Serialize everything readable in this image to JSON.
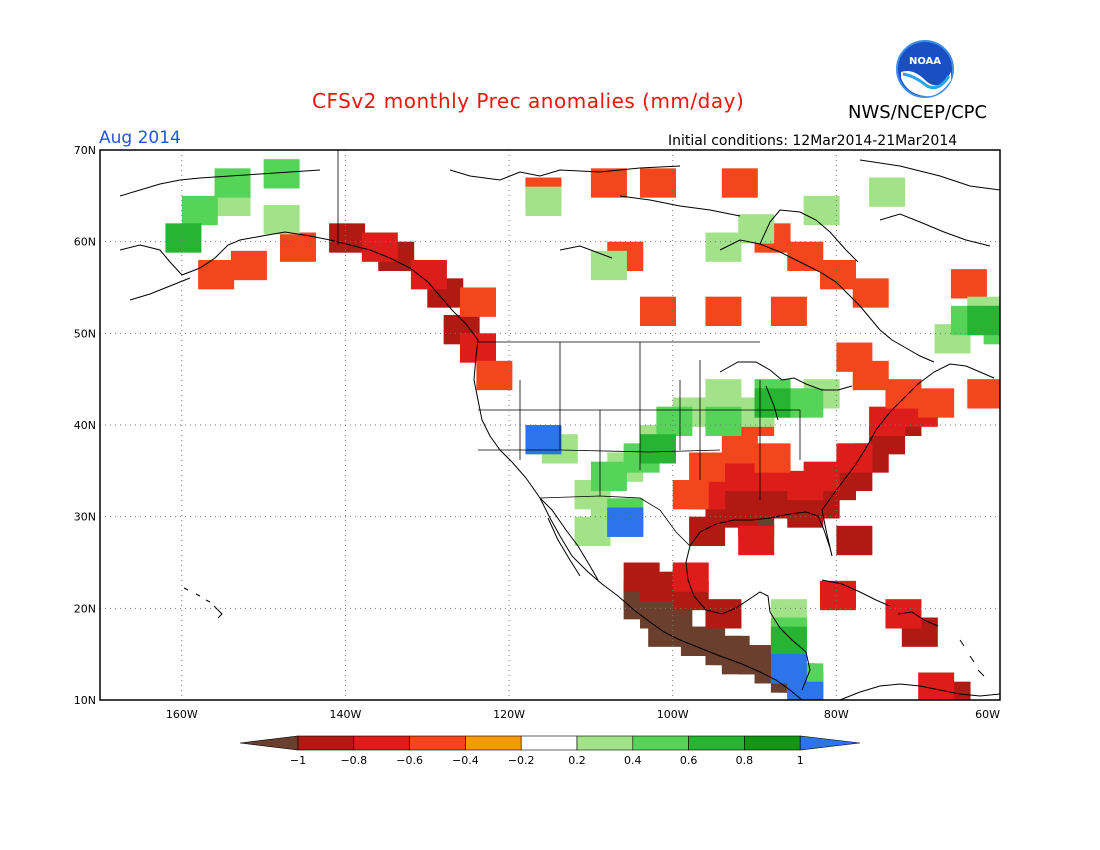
{
  "header": {
    "title": "CFSv2 monthly Prec anomalies (mm/day)",
    "agency": "NWS/NCEP/CPC",
    "valid_month": "Aug 2014",
    "initial_conditions": "Initial conditions: 12Mar2014-21Mar2014",
    "logo_text": "NOAA"
  },
  "map": {
    "lon_range": [
      -170,
      -60
    ],
    "lat_range": [
      10,
      70
    ],
    "lon_ticks": [
      {
        "value": -160,
        "label": "160W"
      },
      {
        "value": -140,
        "label": "140W"
      },
      {
        "value": -120,
        "label": "120W"
      },
      {
        "value": -100,
        "label": "100W"
      },
      {
        "value": -80,
        "label": "80W"
      },
      {
        "value": -60,
        "label": "60W"
      }
    ],
    "lat_ticks": [
      {
        "value": 10,
        "label": "10N"
      },
      {
        "value": 20,
        "label": "20N"
      },
      {
        "value": 30,
        "label": "30N"
      },
      {
        "value": 40,
        "label": "40N"
      },
      {
        "value": 50,
        "label": "50N"
      },
      {
        "value": 60,
        "label": "60N"
      },
      {
        "value": 70,
        "label": "70N"
      }
    ],
    "grid": "dotted",
    "anomaly_regions": [
      {
        "level": "-1",
        "cells": [
          [
            -106,
            22
          ],
          [
            -104,
            20
          ],
          [
            -102,
            19
          ],
          [
            -98,
            17
          ],
          [
            -96,
            16
          ],
          [
            -94,
            15
          ],
          [
            -90,
            14
          ],
          [
            -88,
            13
          ],
          [
            -86,
            12
          ],
          [
            -92,
            30
          ],
          [
            -106,
            21
          ],
          [
            -103,
            18
          ],
          [
            -99,
            17
          ],
          [
            -95,
            16
          ],
          [
            -92,
            15
          ],
          [
            -89,
            14
          ],
          [
            -87,
            13
          ]
        ]
      },
      {
        "level": "-0.8",
        "cells": [
          [
            -96,
            32
          ],
          [
            -94,
            31
          ],
          [
            -92,
            33
          ],
          [
            -90,
            32
          ],
          [
            -88,
            33
          ],
          [
            -86,
            31
          ],
          [
            -84,
            32
          ],
          [
            -82,
            34
          ],
          [
            -80,
            35
          ],
          [
            -78,
            37
          ],
          [
            -76,
            39
          ],
          [
            -74,
            41
          ],
          [
            -142,
            61
          ],
          [
            -136,
            59
          ],
          [
            -130,
            55
          ],
          [
            -128,
            51
          ],
          [
            -106,
            24
          ],
          [
            -100,
            22
          ],
          [
            -96,
            20
          ],
          [
            -80,
            28
          ],
          [
            -72,
            18
          ],
          [
            -68,
            11
          ],
          [
            -96,
            34
          ],
          [
            -98,
            29
          ],
          [
            -104,
            23
          ]
        ]
      },
      {
        "level": "-0.6",
        "cells": [
          [
            -98,
            33
          ],
          [
            -94,
            35
          ],
          [
            -90,
            35
          ],
          [
            -86,
            34
          ],
          [
            -84,
            35
          ],
          [
            -80,
            37
          ],
          [
            -76,
            41
          ],
          [
            -72,
            42
          ],
          [
            -92,
            28
          ],
          [
            -100,
            24
          ],
          [
            -138,
            60
          ],
          [
            -132,
            57
          ],
          [
            -126,
            49
          ],
          [
            -82,
            22
          ],
          [
            -74,
            20
          ],
          [
            -70,
            12
          ]
        ]
      },
      {
        "level": "-0.4",
        "cells": [
          [
            -100,
            33
          ],
          [
            -98,
            36
          ],
          [
            -94,
            38
          ],
          [
            -90,
            37
          ],
          [
            -80,
            48
          ],
          [
            -78,
            46
          ],
          [
            -74,
            44
          ],
          [
            -70,
            43
          ],
          [
            -64,
            44
          ],
          [
            -118,
            66
          ],
          [
            -110,
            67
          ],
          [
            -104,
            67
          ],
          [
            -94,
            67
          ],
          [
            -90,
            61
          ],
          [
            -86,
            59
          ],
          [
            -78,
            55
          ],
          [
            -66,
            56
          ],
          [
            -108,
            59
          ],
          [
            -104,
            53
          ],
          [
            -96,
            53
          ],
          [
            -88,
            53
          ],
          [
            -82,
            57
          ],
          [
            -124,
            46
          ],
          [
            -126,
            54
          ],
          [
            -148,
            60
          ],
          [
            -154,
            58
          ],
          [
            -158,
            57
          ],
          [
            -92,
            41
          ]
        ]
      },
      {
        "level": "0.4",
        "cells": [
          [
            -112,
            33
          ],
          [
            -110,
            31
          ],
          [
            -108,
            36
          ],
          [
            -104,
            39
          ],
          [
            -100,
            42
          ],
          [
            -96,
            44
          ],
          [
            -92,
            42
          ],
          [
            -88,
            43
          ],
          [
            -84,
            44
          ],
          [
            -116,
            38
          ],
          [
            -112,
            29
          ],
          [
            -156,
            65
          ],
          [
            -150,
            63
          ],
          [
            -118,
            65
          ],
          [
            -92,
            62
          ],
          [
            -110,
            58
          ],
          [
            -96,
            60
          ],
          [
            -84,
            64
          ],
          [
            -76,
            66
          ],
          [
            -64,
            53
          ],
          [
            -68,
            50
          ],
          [
            -88,
            20
          ]
        ]
      },
      {
        "level": "0.6",
        "cells": [
          [
            -110,
            35
          ],
          [
            -106,
            37
          ],
          [
            -102,
            41
          ],
          [
            -96,
            41
          ],
          [
            -90,
            44
          ],
          [
            -86,
            43
          ],
          [
            -108,
            31
          ],
          [
            -160,
            64
          ],
          [
            -156,
            67
          ],
          [
            -150,
            68
          ],
          [
            -62,
            51
          ],
          [
            -66,
            52
          ],
          [
            -88,
            18
          ],
          [
            -86,
            13
          ]
        ]
      },
      {
        "level": "0.8",
        "cells": [
          [
            -108,
            30
          ],
          [
            -104,
            38
          ],
          [
            -90,
            43
          ],
          [
            -162,
            61
          ],
          [
            -64,
            52
          ],
          [
            -88,
            17
          ]
        ]
      },
      {
        "level": "1",
        "cells": [
          [
            -118,
            39
          ],
          [
            -108,
            30
          ],
          [
            -88,
            14
          ],
          [
            -86,
            11
          ]
        ]
      }
    ]
  },
  "colorbar": {
    "levels": [
      {
        "label": "-1",
        "color": "#6b3f2e"
      },
      {
        "label": "-0.8",
        "color": "#b11a13"
      },
      {
        "label": "-0.6",
        "color": "#dd1d1a"
      },
      {
        "label": "-0.4",
        "color": "#f4461c"
      },
      {
        "label": "-0.2",
        "color": "#f59a0a"
      },
      {
        "label": "0.2",
        "color": "#ffffff"
      },
      {
        "label": "0.4",
        "color": "#a2e38a"
      },
      {
        "label": "0.6",
        "color": "#56d45a"
      },
      {
        "label": "0.8",
        "color": "#27b432"
      },
      {
        "label": "1",
        "color": "#139613"
      }
    ],
    "extend_low_color": "#6b3f2e",
    "extend_high_color": "#2b74ea",
    "tick_labels": [
      "−1",
      "−0.8",
      "−0.6",
      "−0.4",
      "−0.2",
      "0.2",
      "0.4",
      "0.6",
      "0.8",
      "1"
    ]
  }
}
